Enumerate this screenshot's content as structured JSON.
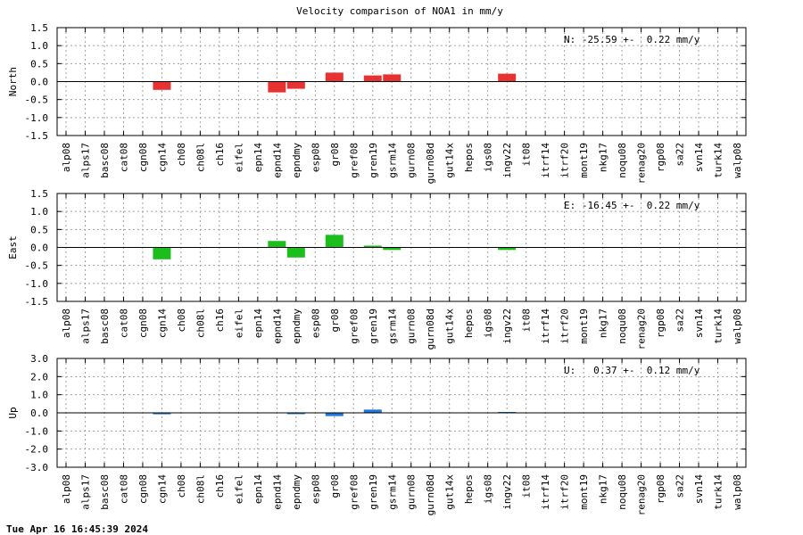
{
  "title": "Velocity comparison of NOA1 in mm/y",
  "timestamp": "Tue Apr 16 16:45:39 2024",
  "chart_data": [
    {
      "type": "bar",
      "ylabel": "North",
      "annotation": "N: -25.59 +-  0.22 mm/y",
      "color": "#e83232",
      "ylim": [
        -1.5,
        1.5
      ],
      "yticks": [
        -1.5,
        -1.0,
        -0.5,
        0.0,
        0.5,
        1.0,
        1.5
      ],
      "ytick_labels": [
        "-1.5",
        "-1.0",
        "-0.5",
        "0.0",
        "0.5",
        "1.0",
        "1.5"
      ],
      "grid": true,
      "categories": [
        "alp08",
        "alps17",
        "basc08",
        "cat08",
        "cgn08",
        "cgn14",
        "ch08",
        "ch08l",
        "ch16",
        "eifel",
        "epn14",
        "epnd14",
        "epndmy",
        "esp08",
        "gr08",
        "gref08",
        "gren19",
        "gsrm14",
        "gurn08",
        "gurn08d",
        "gut14x",
        "hepos",
        "igs08",
        "ingv22",
        "it08",
        "itrf14",
        "itrf20",
        "mont19",
        "nkg17",
        "noqu08",
        "renag20",
        "rgp08",
        "sa22",
        "svn14",
        "turk14",
        "walp08"
      ],
      "values": [
        null,
        null,
        null,
        null,
        null,
        -0.23,
        null,
        null,
        null,
        null,
        null,
        -0.3,
        -0.2,
        null,
        0.25,
        null,
        0.17,
        0.2,
        null,
        null,
        null,
        null,
        null,
        0.22,
        null,
        null,
        null,
        null,
        null,
        null,
        null,
        null,
        null,
        null,
        null,
        null
      ]
    },
    {
      "type": "bar",
      "ylabel": "East",
      "annotation": "E: -16.45 +-  0.22 mm/y",
      "color": "#1cbe1c",
      "ylim": [
        -1.5,
        1.5
      ],
      "yticks": [
        -1.5,
        -1.0,
        -0.5,
        0.0,
        0.5,
        1.0,
        1.5
      ],
      "ytick_labels": [
        "-1.5",
        "-1.0",
        "-0.5",
        "0.0",
        "0.5",
        "1.0",
        "1.5"
      ],
      "grid": true,
      "categories": [
        "alp08",
        "alps17",
        "basc08",
        "cat08",
        "cgn08",
        "cgn14",
        "ch08",
        "ch08l",
        "ch16",
        "eifel",
        "epn14",
        "epnd14",
        "epndmy",
        "esp08",
        "gr08",
        "gref08",
        "gren19",
        "gsrm14",
        "gurn08",
        "gurn08d",
        "gut14x",
        "hepos",
        "igs08",
        "ingv22",
        "it08",
        "itrf14",
        "itrf20",
        "mont19",
        "nkg17",
        "noqu08",
        "renag20",
        "rgp08",
        "sa22",
        "svn14",
        "turk14",
        "walp08"
      ],
      "values": [
        null,
        null,
        null,
        null,
        null,
        -0.33,
        null,
        null,
        null,
        null,
        null,
        0.18,
        -0.28,
        null,
        0.35,
        null,
        0.05,
        -0.07,
        null,
        null,
        null,
        null,
        null,
        -0.07,
        null,
        null,
        null,
        null,
        null,
        null,
        null,
        null,
        null,
        null,
        null,
        null
      ]
    },
    {
      "type": "bar",
      "ylabel": "Up",
      "annotation": "U:   0.37 +-  0.12 mm/y",
      "color": "#1e78dc",
      "ylim": [
        -3.0,
        3.0
      ],
      "yticks": [
        -3.0,
        -2.0,
        -1.0,
        0.0,
        1.0,
        2.0,
        3.0
      ],
      "ytick_labels": [
        "-3.0",
        "-2.0",
        "-1.0",
        "0.0",
        "1.0",
        "2.0",
        "3.0"
      ],
      "grid": true,
      "categories": [
        "alp08",
        "alps17",
        "basc08",
        "cat08",
        "cgn08",
        "cgn14",
        "ch08",
        "ch08l",
        "ch16",
        "eifel",
        "epn14",
        "epnd14",
        "epndmy",
        "esp08",
        "gr08",
        "gref08",
        "gren19",
        "gsrm14",
        "gurn08",
        "gurn08d",
        "gut14x",
        "hepos",
        "igs08",
        "ingv22",
        "it08",
        "itrf14",
        "itrf20",
        "mont19",
        "nkg17",
        "noqu08",
        "renag20",
        "rgp08",
        "sa22",
        "svn14",
        "turk14",
        "walp08"
      ],
      "values": [
        null,
        null,
        null,
        null,
        null,
        -0.08,
        null,
        null,
        null,
        null,
        null,
        null,
        -0.07,
        null,
        -0.18,
        null,
        0.18,
        null,
        null,
        null,
        null,
        null,
        null,
        0.05,
        null,
        null,
        null,
        null,
        null,
        null,
        null,
        null,
        null,
        null,
        null,
        null
      ]
    }
  ]
}
